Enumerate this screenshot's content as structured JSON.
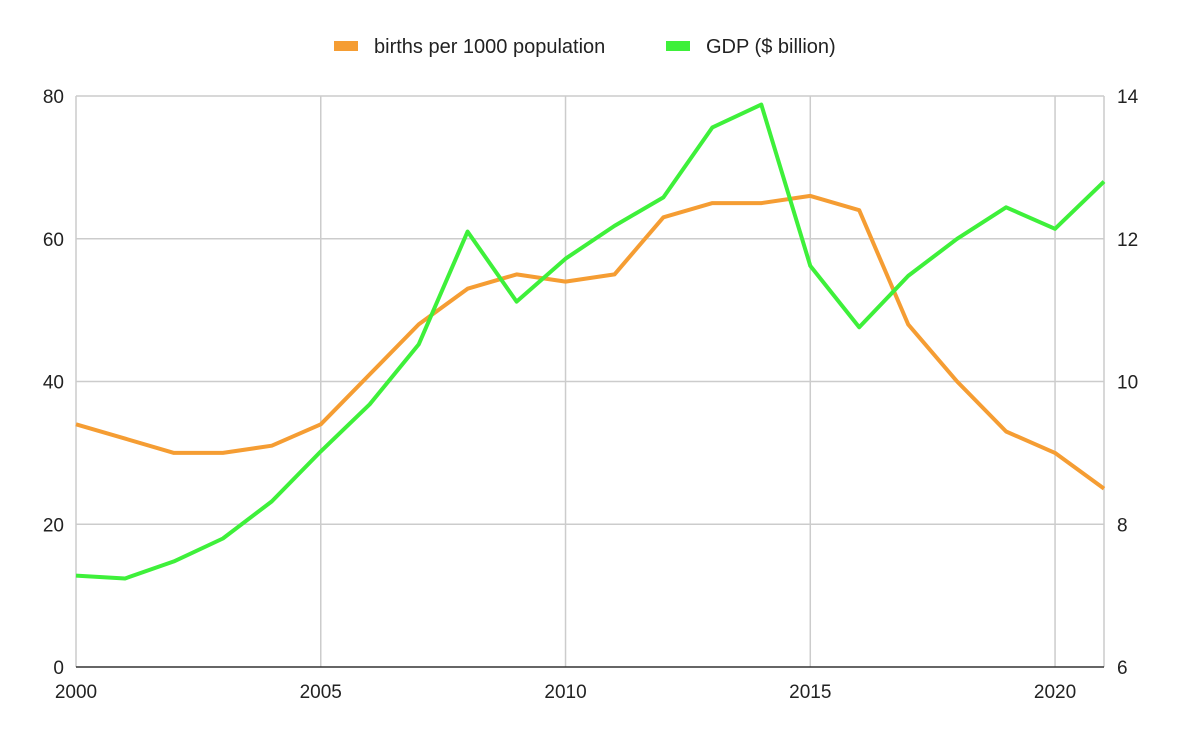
{
  "colors": {
    "births": "#f59d33",
    "gdp": "#3ef03a",
    "grid": "#cccccc",
    "axis": "#333333"
  },
  "chart_data": {
    "type": "line",
    "title": "",
    "xlabel": "",
    "ylabel": "",
    "grid": true,
    "legend_position": "top-center",
    "x": [
      2000,
      2001,
      2002,
      2003,
      2004,
      2005,
      2006,
      2007,
      2008,
      2009,
      2010,
      2011,
      2012,
      2013,
      2014,
      2015,
      2016,
      2017,
      2018,
      2019,
      2020,
      2021
    ],
    "xlim": [
      2000,
      2021
    ],
    "x_ticks": [
      "2000",
      "2005",
      "2010",
      "2015",
      "2020"
    ],
    "x_tick_values": [
      2000,
      2005,
      2010,
      2015,
      2020
    ],
    "y_left": {
      "ylim": [
        0,
        80
      ],
      "ticks": [
        "0",
        "20",
        "40",
        "60",
        "80"
      ],
      "tick_values": [
        0,
        20,
        40,
        60,
        80
      ]
    },
    "y_right": {
      "ylim": [
        6,
        14
      ],
      "ticks": [
        "6",
        "8",
        "10",
        "12",
        "14"
      ],
      "tick_values": [
        6,
        8,
        10,
        12,
        14
      ]
    },
    "series": [
      {
        "name": "births per 1000 population",
        "axis": "left",
        "color": "#f59d33",
        "values": [
          34,
          32,
          30,
          30,
          31,
          34,
          41,
          48,
          53,
          55,
          54,
          55,
          63,
          65,
          65,
          66,
          64,
          48,
          40,
          33,
          30,
          25
        ]
      },
      {
        "name": "GDP ($ billion)",
        "axis": "right",
        "color": "#3ef03a",
        "values": [
          7.28,
          7.24,
          7.48,
          7.8,
          8.32,
          9.02,
          9.68,
          10.52,
          12.1,
          11.12,
          11.72,
          12.18,
          12.58,
          13.56,
          13.88,
          11.62,
          10.76,
          11.48,
          12.0,
          12.44,
          12.14,
          12.8
        ]
      }
    ]
  }
}
